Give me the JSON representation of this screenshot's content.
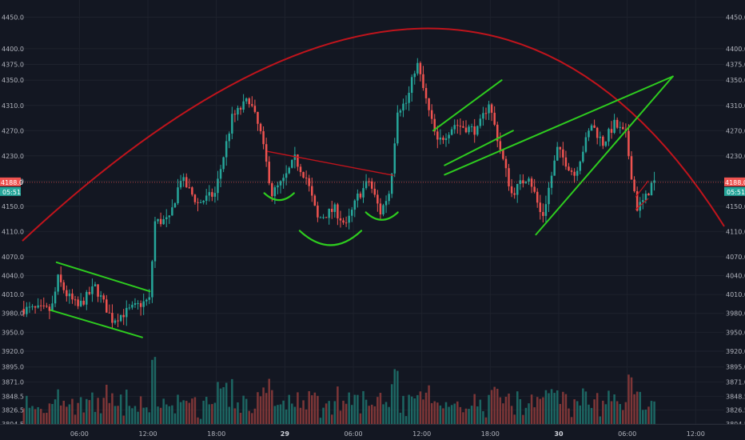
{
  "chart_data": {
    "type": "candlestick",
    "colors": {
      "background": "#131722",
      "grid": "#1e222d",
      "up": "#26a69a",
      "down": "#ef5350",
      "volume_up": "#1e6f69",
      "volume_down": "#8a3a3a",
      "arc": "#c0141c",
      "pattern": "#2ecc1f",
      "resistance": "#c0141c",
      "axis_text": "#b2b5be",
      "badge_price": "#ef5350",
      "badge_time": "#26a69a"
    },
    "price_axis": {
      "min": 3804.5,
      "max": 4462,
      "labels": [
        "4450.0",
        "4400.0",
        "4375.0",
        "4350.0",
        "4310.0",
        "4270.0",
        "4230.0",
        "4190.0",
        "4150.0",
        "4110.0",
        "4070.0",
        "4040.0",
        "4010.0",
        "3980.0",
        "3950.0",
        "3920.0",
        "3895.0",
        "3871.0",
        "3848.5",
        "3826.5",
        "3804.5"
      ]
    },
    "time_axis": {
      "start": "2019-03-28T01:00",
      "end": "2019-03-30T14:30",
      "labels": [
        {
          "text": "06:00",
          "t": "2019-03-28T06:00"
        },
        {
          "text": "12:00",
          "t": "2019-03-28T12:00"
        },
        {
          "text": "18:00",
          "t": "2019-03-28T18:00"
        },
        {
          "text": "29",
          "t": "2019-03-29T00:00",
          "bold": true
        },
        {
          "text": "06:00",
          "t": "2019-03-29T06:00"
        },
        {
          "text": "12:00",
          "t": "2019-03-29T12:00"
        },
        {
          "text": "18:00",
          "t": "2019-03-29T18:00"
        },
        {
          "text": "30",
          "t": "2019-03-30T00:00",
          "bold": true
        },
        {
          "text": "06:00",
          "t": "2019-03-30T06:00"
        },
        {
          "text": "12:00",
          "t": "2019-03-30T12:00"
        }
      ]
    },
    "price_path": [
      {
        "t": "2019-03-28T01:00",
        "p": 3987
      },
      {
        "t": "2019-03-28T03:40",
        "p": 3985
      },
      {
        "t": "2019-03-28T04:15",
        "p": 4035
      },
      {
        "t": "2019-03-28T05:00",
        "p": 4010
      },
      {
        "t": "2019-03-28T06:00",
        "p": 3990
      },
      {
        "t": "2019-03-28T07:30",
        "p": 4022
      },
      {
        "t": "2019-03-28T09:00",
        "p": 3970
      },
      {
        "t": "2019-03-28T11:30",
        "p": 3995
      },
      {
        "t": "2019-03-28T12:20",
        "p": 4002
      },
      {
        "t": "2019-03-28T12:40",
        "p": 4125
      },
      {
        "t": "2019-03-28T14:00",
        "p": 4128
      },
      {
        "t": "2019-03-28T15:00",
        "p": 4195
      },
      {
        "t": "2019-03-28T16:30",
        "p": 4155
      },
      {
        "t": "2019-03-28T18:00",
        "p": 4170
      },
      {
        "t": "2019-03-28T19:30",
        "p": 4290
      },
      {
        "t": "2019-03-28T21:00",
        "p": 4320
      },
      {
        "t": "2019-03-28T22:00",
        "p": 4265
      },
      {
        "t": "2019-03-28T23:00",
        "p": 4170
      },
      {
        "t": "2019-03-29T00:00",
        "p": 4190
      },
      {
        "t": "2019-03-29T01:00",
        "p": 4225
      },
      {
        "t": "2019-03-29T02:00",
        "p": 4195
      },
      {
        "t": "2019-03-29T03:00",
        "p": 4130
      },
      {
        "t": "2019-03-29T04:30",
        "p": 4145
      },
      {
        "t": "2019-03-29T05:30",
        "p": 4118
      },
      {
        "t": "2019-03-29T06:30",
        "p": 4165
      },
      {
        "t": "2019-03-29T07:30",
        "p": 4190
      },
      {
        "t": "2019-03-29T08:30",
        "p": 4140
      },
      {
        "t": "2019-03-29T09:20",
        "p": 4175
      },
      {
        "t": "2019-03-29T10:00",
        "p": 4305
      },
      {
        "t": "2019-03-29T10:50",
        "p": 4315
      },
      {
        "t": "2019-03-29T11:40",
        "p": 4380
      },
      {
        "t": "2019-03-29T12:40",
        "p": 4305
      },
      {
        "t": "2019-03-29T13:30",
        "p": 4250
      },
      {
        "t": "2019-03-29T15:00",
        "p": 4280
      },
      {
        "t": "2019-03-29T17:00",
        "p": 4270
      },
      {
        "t": "2019-03-29T18:00",
        "p": 4315
      },
      {
        "t": "2019-03-29T19:00",
        "p": 4240
      },
      {
        "t": "2019-03-29T20:00",
        "p": 4170
      },
      {
        "t": "2019-03-29T21:30",
        "p": 4200
      },
      {
        "t": "2019-03-29T22:40",
        "p": 4130
      },
      {
        "t": "2019-03-30T00:00",
        "p": 4240
      },
      {
        "t": "2019-03-30T01:30",
        "p": 4200
      },
      {
        "t": "2019-03-30T03:00",
        "p": 4280
      },
      {
        "t": "2019-03-30T04:00",
        "p": 4250
      },
      {
        "t": "2019-03-30T05:00",
        "p": 4280
      },
      {
        "t": "2019-03-30T06:00",
        "p": 4262
      },
      {
        "t": "2019-03-30T06:30",
        "p": 4200
      },
      {
        "t": "2019-03-30T07:00",
        "p": 4148
      },
      {
        "t": "2019-03-30T07:40",
        "p": 4160
      },
      {
        "t": "2019-03-30T08:20",
        "p": 4188
      }
    ],
    "last_price": {
      "value": "4188.0",
      "countdown": "05:51"
    },
    "drawings": {
      "arc": {
        "start": {
          "t": "2019-03-28T01:00",
          "p": 4095
        },
        "top": {
          "t": "2019-03-29T12:00",
          "p": 4432
        },
        "end": {
          "t": "2019-03-30T14:30",
          "p": 4118
        }
      },
      "channel_1": [
        {
          "from": {
            "t": "2019-03-28T04:00",
            "p": 4061
          },
          "to": {
            "t": "2019-03-28T12:10",
            "p": 4015
          }
        },
        {
          "from": {
            "t": "2019-03-28T03:30",
            "p": 3985
          },
          "to": {
            "t": "2019-03-28T11:30",
            "p": 3942
          }
        }
      ],
      "resistance_line": {
        "from": {
          "t": "2019-03-28T22:30",
          "p": 4237
        },
        "to": {
          "t": "2019-03-29T09:30",
          "p": 4199
        }
      },
      "wedge_1": [
        {
          "from": {
            "t": "2019-03-29T13:00",
            "p": 4270
          },
          "to": {
            "t": "2019-03-29T19:00",
            "p": 4350
          }
        },
        {
          "from": {
            "t": "2019-03-29T14:00",
            "p": 4215
          },
          "to": {
            "t": "2019-03-29T20:00",
            "p": 4270
          }
        }
      ],
      "wedge_2": [
        {
          "from": {
            "t": "2019-03-29T14:00",
            "p": 4200
          },
          "to": {
            "t": "2019-03-30T10:00",
            "p": 4356
          }
        },
        {
          "from": {
            "t": "2019-03-29T22:00",
            "p": 4105
          },
          "to": {
            "t": "2019-03-30T10:00",
            "p": 4356
          }
        }
      ],
      "small_channel": [
        {
          "from": {
            "t": "2019-03-30T06:45",
            "p": 4165
          },
          "to": {
            "t": "2019-03-30T07:50",
            "p": 4190
          }
        },
        {
          "from": {
            "t": "2019-03-30T06:45",
            "p": 4145
          },
          "to": {
            "t": "2019-03-30T07:50",
            "p": 4162
          }
        }
      ],
      "cups": [
        {
          "center": {
            "t": "2019-03-28T23:30",
            "p": 4163
          },
          "width_hours": 2.6
        },
        {
          "center": {
            "t": "2019-03-29T04:00",
            "p": 4095
          },
          "width_hours": 5.4
        },
        {
          "center": {
            "t": "2019-03-29T08:30",
            "p": 4132
          },
          "width_hours": 2.8
        }
      ]
    }
  }
}
